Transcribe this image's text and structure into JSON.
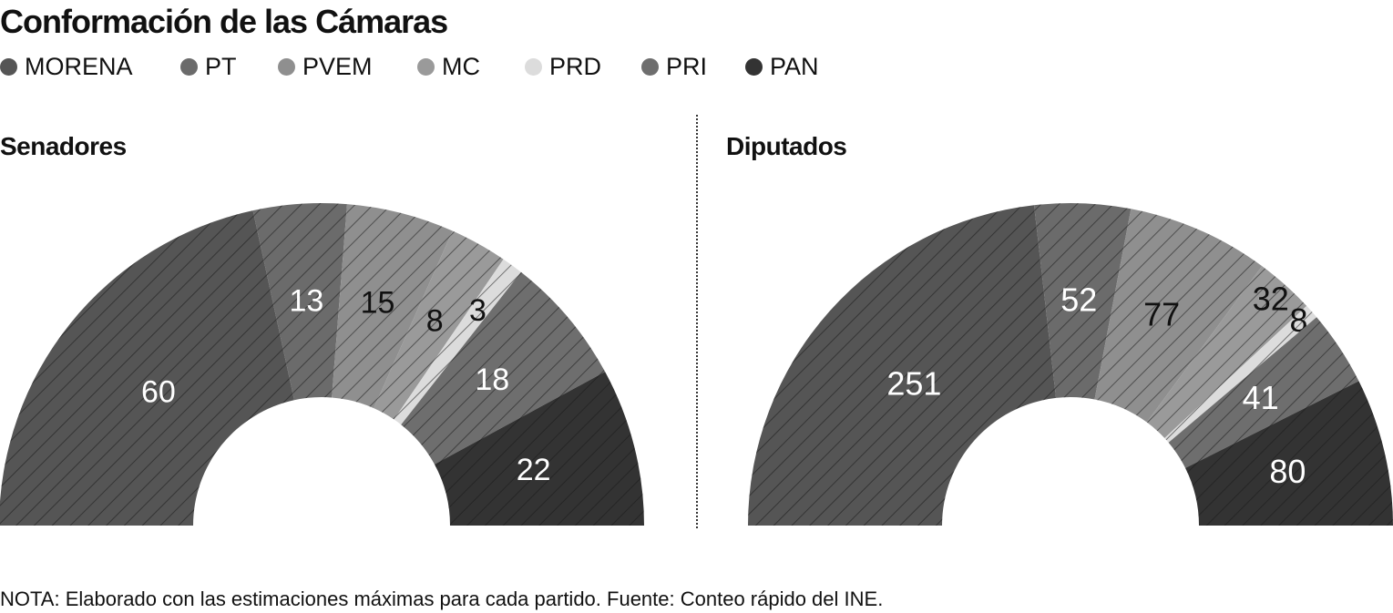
{
  "title": "Conformación de las Cámaras",
  "legend": [
    {
      "label": "MORENA",
      "color": "#555555"
    },
    {
      "label": "PT",
      "color": "#6b6b6b"
    },
    {
      "label": "PVEM",
      "color": "#8f8f8f"
    },
    {
      "label": "MC",
      "color": "#9a9a9a"
    },
    {
      "label": "PRD",
      "color": "#dcdcdc"
    },
    {
      "label": "PRI",
      "color": "#6e6e6e"
    },
    {
      "label": "PAN",
      "color": "#333333"
    }
  ],
  "note": "NOTA: Elaborado con las estimaciones máximas para cada partido. Fuente: Conteo rápido del INE.",
  "chart_data": [
    {
      "type": "pie",
      "title": "Senadores",
      "categories": [
        "MORENA",
        "PT",
        "PVEM",
        "MC",
        "PRD",
        "PRI",
        "PAN"
      ],
      "values": [
        60,
        13,
        15,
        8,
        3,
        18,
        22
      ]
    },
    {
      "type": "pie",
      "title": "Diputados",
      "categories": [
        "MORENA",
        "PT",
        "PVEM",
        "MC",
        "PRD",
        "PRI",
        "PAN"
      ],
      "values": [
        251,
        52,
        77,
        32,
        8,
        41,
        80
      ]
    }
  ]
}
